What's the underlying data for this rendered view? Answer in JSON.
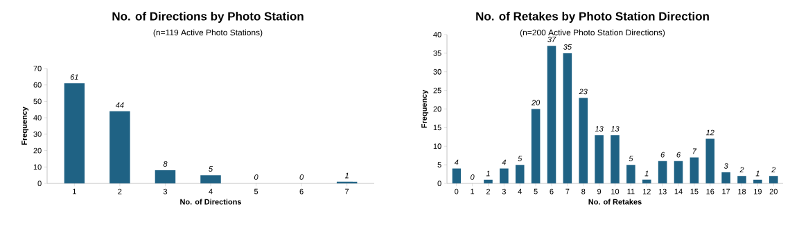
{
  "chart_data": [
    {
      "type": "bar",
      "title": "No. of Directions by Photo Station",
      "subtitle": "(n=119 Active Photo Stations)",
      "xlabel": "No. of Directions",
      "ylabel": "Frequency",
      "categories": [
        "1",
        "2",
        "3",
        "4",
        "5",
        "6",
        "7"
      ],
      "values": [
        61,
        44,
        8,
        5,
        0,
        0,
        1
      ],
      "color": "#1f6284",
      "ylim": [
        0,
        70
      ],
      "yticks": [
        0,
        10,
        20,
        30,
        40,
        50,
        60,
        70
      ],
      "data_labels": true
    },
    {
      "type": "bar",
      "title": "No. of Retakes by Photo Station Direction",
      "subtitle": "(n=200 Active Photo Station Directions)",
      "xlabel": "No. of Retakes",
      "ylabel": "Frequency",
      "categories": [
        "0",
        "1",
        "2",
        "3",
        "4",
        "5",
        "6",
        "7",
        "8",
        "9",
        "10",
        "11",
        "12",
        "13",
        "14",
        "15",
        "16",
        "17",
        "18",
        "19",
        "20"
      ],
      "values": [
        4,
        0,
        1,
        4,
        5,
        20,
        37,
        35,
        23,
        13,
        13,
        5,
        1,
        6,
        6,
        7,
        12,
        3,
        2,
        1,
        2
      ],
      "color": "#1f6284",
      "ylim": [
        0,
        40
      ],
      "yticks": [
        0,
        5,
        10,
        15,
        20,
        25,
        30,
        35,
        40
      ],
      "data_labels": true
    }
  ]
}
